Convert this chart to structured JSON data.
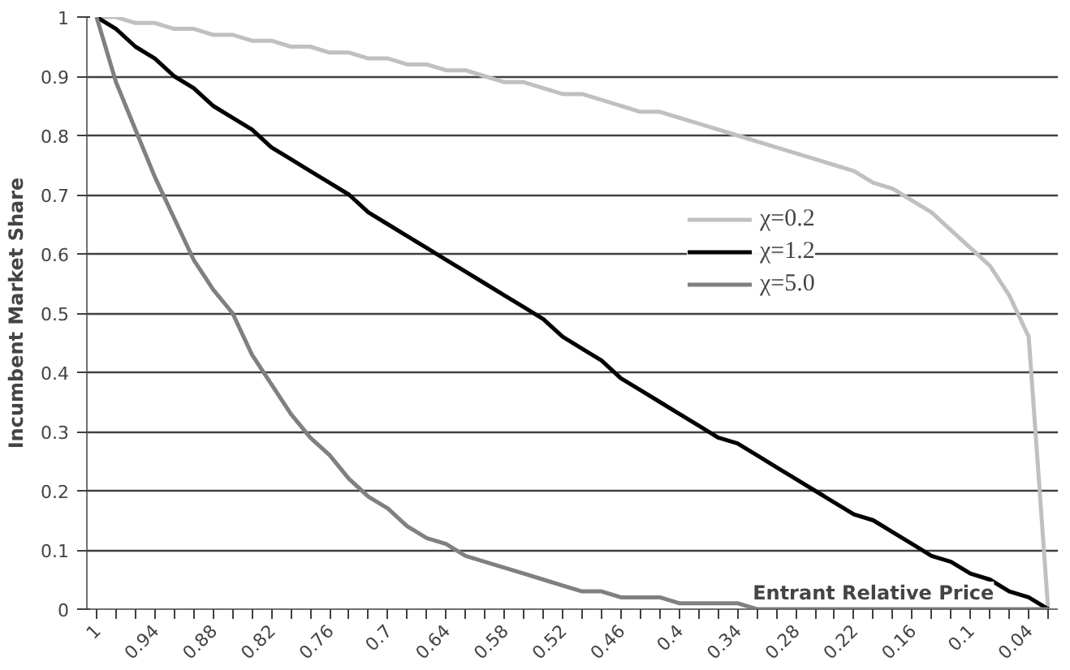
{
  "chart_data": {
    "type": "line",
    "xlabel": "Entrant Relative Price",
    "ylabel": "Incumbent Market Share",
    "categories": [
      "1",
      null,
      null,
      "0.94",
      null,
      null,
      "0.88",
      null,
      null,
      "0.82",
      null,
      null,
      "0.76",
      null,
      null,
      "0.7",
      null,
      null,
      "0.64",
      null,
      null,
      "0.58",
      null,
      null,
      "0.52",
      null,
      null,
      "0.46",
      null,
      null,
      "0.4",
      null,
      null,
      "0.34",
      null,
      null,
      "0.28",
      null,
      null,
      "0.22",
      null,
      null,
      "0.16",
      null,
      null,
      "0.1",
      null,
      null,
      "0.04",
      null
    ],
    "series": [
      {
        "name": "χ=0.2",
        "color": "#c0c0c0",
        "values": [
          1,
          1.0,
          0.99,
          0.99,
          0.98,
          0.98,
          0.97,
          0.97,
          0.96,
          0.96,
          0.95,
          0.95,
          0.94,
          0.94,
          0.93,
          0.93,
          0.92,
          0.92,
          0.91,
          0.91,
          0.9,
          0.89,
          0.89,
          0.88,
          0.87,
          0.87,
          0.86,
          0.85,
          0.84,
          0.84,
          0.83,
          0.82,
          0.81,
          0.8,
          0.79,
          0.78,
          0.77,
          0.76,
          0.75,
          0.74,
          0.72,
          0.71,
          0.69,
          0.67,
          0.64,
          0.61,
          0.58,
          0.53,
          0.46,
          0
        ]
      },
      {
        "name": "χ=1.2",
        "color": "#000000",
        "values": [
          1,
          0.98,
          0.95,
          0.93,
          0.9,
          0.88,
          0.85,
          0.83,
          0.81,
          0.78,
          0.76,
          0.74,
          0.72,
          0.7,
          0.67,
          0.65,
          0.63,
          0.61,
          0.59,
          0.57,
          0.55,
          0.53,
          0.51,
          0.49,
          0.46,
          0.44,
          0.42,
          0.39,
          0.37,
          0.35,
          0.33,
          0.31,
          0.29,
          0.28,
          0.26,
          0.24,
          0.22,
          0.2,
          0.18,
          0.16,
          0.15,
          0.13,
          0.11,
          0.09,
          0.08,
          0.06,
          0.05,
          0.03,
          0.02,
          0
        ]
      },
      {
        "name": "χ=5.0",
        "color": "#808080",
        "values": [
          1,
          0.89,
          0.81,
          0.73,
          0.66,
          0.59,
          0.54,
          0.5,
          0.43,
          0.38,
          0.33,
          0.29,
          0.26,
          0.22,
          0.19,
          0.17,
          0.14,
          0.12,
          0.11,
          0.09,
          0.08,
          0.07,
          0.06,
          0.05,
          0.04,
          0.03,
          0.03,
          0.02,
          0.02,
          0.02,
          0.01,
          0.01,
          0.01,
          0.01,
          0.0,
          0.0,
          0.0,
          0.0,
          0.0,
          0.0,
          0.0,
          0.0,
          0.0,
          0.0,
          0.0,
          0.0,
          0.0,
          0.0,
          0.0,
          0
        ]
      }
    ],
    "ylim": [
      0,
      1
    ],
    "yticks": [
      0,
      0.1,
      0.2,
      0.3,
      0.4,
      0.5,
      0.6,
      0.7,
      0.8,
      0.9,
      1
    ],
    "grid": "y",
    "legend": "right",
    "marker": "none",
    "line_style": "solid"
  }
}
